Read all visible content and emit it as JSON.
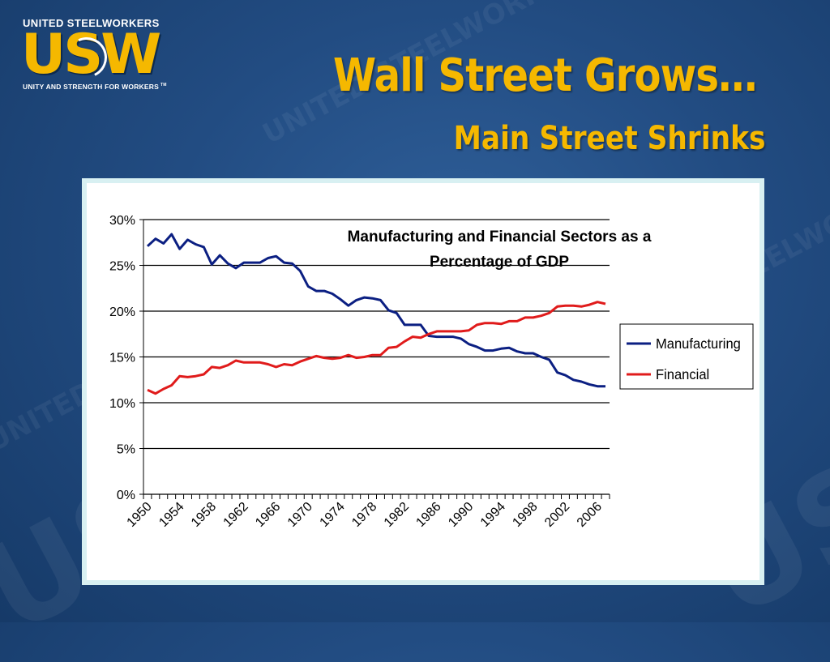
{
  "slide": {
    "title": "Wall Street Grows…",
    "subtitle": "Main Street Shrinks"
  },
  "logo": {
    "top_text": "UNITED STEELWORKERS",
    "mark": "USW",
    "tagline": "UNITY AND STRENGTH FOR WORKERS",
    "trademark": "TM"
  },
  "colors": {
    "background": "#224c82",
    "title": "#f5b800",
    "manufacturing": "#0b1f82",
    "financial": "#e01b1b",
    "gridline": "#000000"
  },
  "chart_data": {
    "type": "line",
    "title": "Manufacturing and Financial Sectors as a Percentage of GDP",
    "xlabel": "",
    "ylabel": "",
    "x": [
      1950,
      1951,
      1952,
      1953,
      1954,
      1955,
      1956,
      1957,
      1958,
      1959,
      1960,
      1961,
      1962,
      1963,
      1964,
      1965,
      1966,
      1967,
      1968,
      1969,
      1970,
      1971,
      1972,
      1973,
      1974,
      1975,
      1976,
      1977,
      1978,
      1979,
      1980,
      1981,
      1982,
      1983,
      1984,
      1985,
      1986,
      1987,
      1988,
      1989,
      1990,
      1991,
      1992,
      1993,
      1994,
      1995,
      1996,
      1997,
      1998,
      1999,
      2000,
      2001,
      2002,
      2003,
      2004,
      2005,
      2006,
      2007
    ],
    "x_ticks": [
      "1950",
      "1954",
      "1958",
      "1962",
      "1966",
      "1970",
      "1974",
      "1978",
      "1982",
      "1986",
      "1990",
      "1994",
      "1998",
      "2002",
      "2006"
    ],
    "y_ticks": [
      "0%",
      "5%",
      "10%",
      "15%",
      "20%",
      "25%",
      "30%"
    ],
    "ylim": [
      0,
      30
    ],
    "y_unit": "%",
    "grid": "horizontal",
    "legend_position": "right",
    "series": [
      {
        "name": "Manufacturing",
        "color": "#0b1f82",
        "values": [
          27.1,
          27.9,
          27.4,
          28.4,
          26.8,
          27.8,
          27.3,
          27.0,
          25.1,
          26.1,
          25.2,
          24.7,
          25.3,
          25.3,
          25.3,
          25.8,
          26.0,
          25.3,
          25.2,
          24.4,
          22.7,
          22.2,
          22.2,
          21.9,
          21.3,
          20.6,
          21.2,
          21.5,
          21.4,
          21.2,
          20.1,
          19.8,
          18.5,
          18.5,
          18.5,
          17.3,
          17.2,
          17.2,
          17.2,
          17.0,
          16.4,
          16.1,
          15.7,
          15.7,
          15.9,
          16.0,
          15.6,
          15.4,
          15.4,
          15.0,
          14.7,
          13.3,
          13.0,
          12.5,
          12.3,
          12.0,
          11.8,
          11.8
        ]
      },
      {
        "name": "Financial",
        "color": "#e01b1b",
        "values": [
          11.4,
          11.0,
          11.5,
          11.9,
          12.9,
          12.8,
          12.9,
          13.1,
          13.9,
          13.8,
          14.1,
          14.6,
          14.4,
          14.4,
          14.4,
          14.2,
          13.9,
          14.2,
          14.1,
          14.5,
          14.8,
          15.1,
          14.9,
          14.8,
          14.9,
          15.2,
          14.9,
          15.0,
          15.2,
          15.2,
          16.0,
          16.1,
          16.7,
          17.2,
          17.1,
          17.5,
          17.8,
          17.8,
          17.8,
          17.8,
          17.9,
          18.5,
          18.7,
          18.7,
          18.6,
          18.9,
          18.9,
          19.3,
          19.3,
          19.5,
          19.8,
          20.5,
          20.6,
          20.6,
          20.5,
          20.7,
          21.0,
          20.8
        ]
      }
    ]
  }
}
